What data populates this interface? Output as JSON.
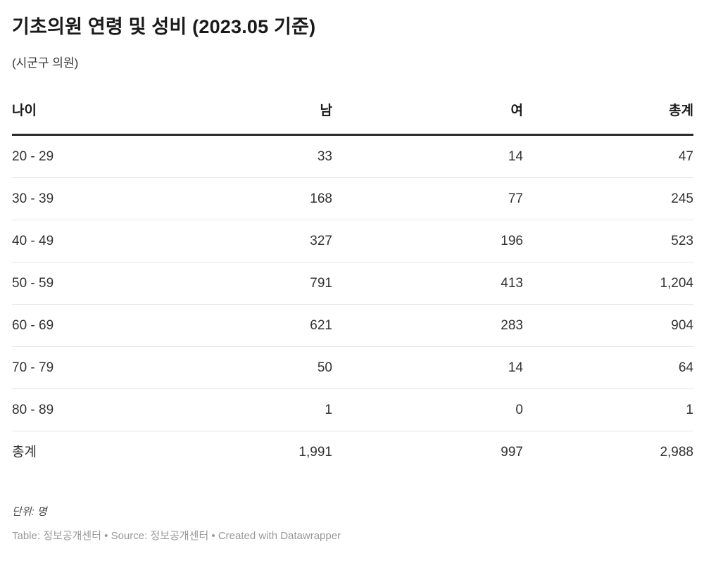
{
  "header": {
    "title": "기초의원 연령 및 성비 (2023.05 기준)",
    "subtitle": "(시군구 의원)"
  },
  "table": {
    "columns": [
      "나이",
      "남",
      "여",
      "총계"
    ],
    "rows": [
      [
        "20 - 29",
        "33",
        "14",
        "47"
      ],
      [
        "30 - 39",
        "168",
        "77",
        "245"
      ],
      [
        "40 - 49",
        "327",
        "196",
        "523"
      ],
      [
        "50 - 59",
        "791",
        "413",
        "1,204"
      ],
      [
        "60 - 69",
        "621",
        "283",
        "904"
      ],
      [
        "70 - 79",
        "50",
        "14",
        "64"
      ],
      [
        "80 - 89",
        "1",
        "0",
        "1"
      ],
      [
        "총계",
        "1,991",
        "997",
        "2,988"
      ]
    ]
  },
  "footer": {
    "notes": "단위: 명",
    "attribution": "Table: 정보공개센터 • Source: 정보공개센터 • Created with Datawrapper"
  },
  "colors": {
    "title_text": "#1a1a1a",
    "body_text": "#333333",
    "header_rule": "#2b2b2b",
    "row_divider": "#e6e6e6",
    "notes_text": "#494949",
    "attribution_text": "#999999",
    "background": "#ffffff"
  },
  "chart_data": {
    "type": "table",
    "title": "기초의원 연령 및 성비 (2023.05 기준)",
    "subtitle": "(시군구 의원)",
    "columns": [
      "나이",
      "남",
      "여",
      "총계"
    ],
    "categories": [
      "20 - 29",
      "30 - 39",
      "40 - 49",
      "50 - 59",
      "60 - 69",
      "70 - 79",
      "80 - 89",
      "총계"
    ],
    "series": [
      {
        "name": "남",
        "values": [
          33,
          168,
          327,
          791,
          621,
          50,
          1,
          1991
        ]
      },
      {
        "name": "여",
        "values": [
          14,
          77,
          196,
          413,
          283,
          14,
          0,
          997
        ]
      },
      {
        "name": "총계",
        "values": [
          47,
          245,
          523,
          1204,
          904,
          64,
          1,
          2988
        ]
      }
    ],
    "notes": "단위: 명",
    "layout_hints": {
      "numeric_columns_right_aligned": true,
      "header_rule_thick": true,
      "row_dividers": true,
      "total_row_last": true
    }
  }
}
